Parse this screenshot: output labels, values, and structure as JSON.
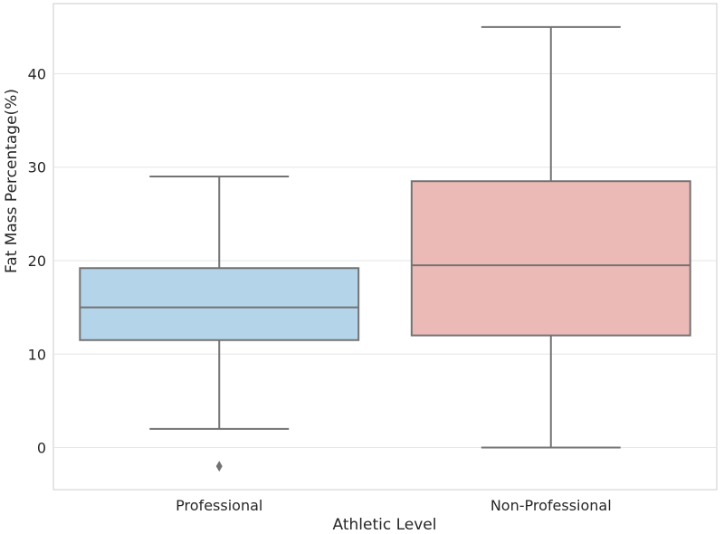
{
  "chart_data": {
    "type": "box",
    "title": "",
    "xlabel": "Athletic Level",
    "ylabel": "Fat Mass Percentage(%)",
    "categories": [
      "Professional",
      "Non-Professional"
    ],
    "ylim": [
      -4.5,
      47.5
    ],
    "yticks": [
      0,
      10,
      20,
      30,
      40
    ],
    "grid": true,
    "boxes": [
      {
        "category": "Professional",
        "whisker_low": 2,
        "q1": 11.5,
        "median": 15,
        "q3": 19.2,
        "whisker_high": 29,
        "outliers": [
          -2
        ],
        "color": "#b4d4ea"
      },
      {
        "category": "Non-Professional",
        "whisker_low": 0,
        "q1": 12,
        "median": 19.5,
        "q3": 28.5,
        "whisker_high": 45,
        "outliers": [],
        "color": "#ecbab6"
      }
    ],
    "line_color": "#737373"
  }
}
